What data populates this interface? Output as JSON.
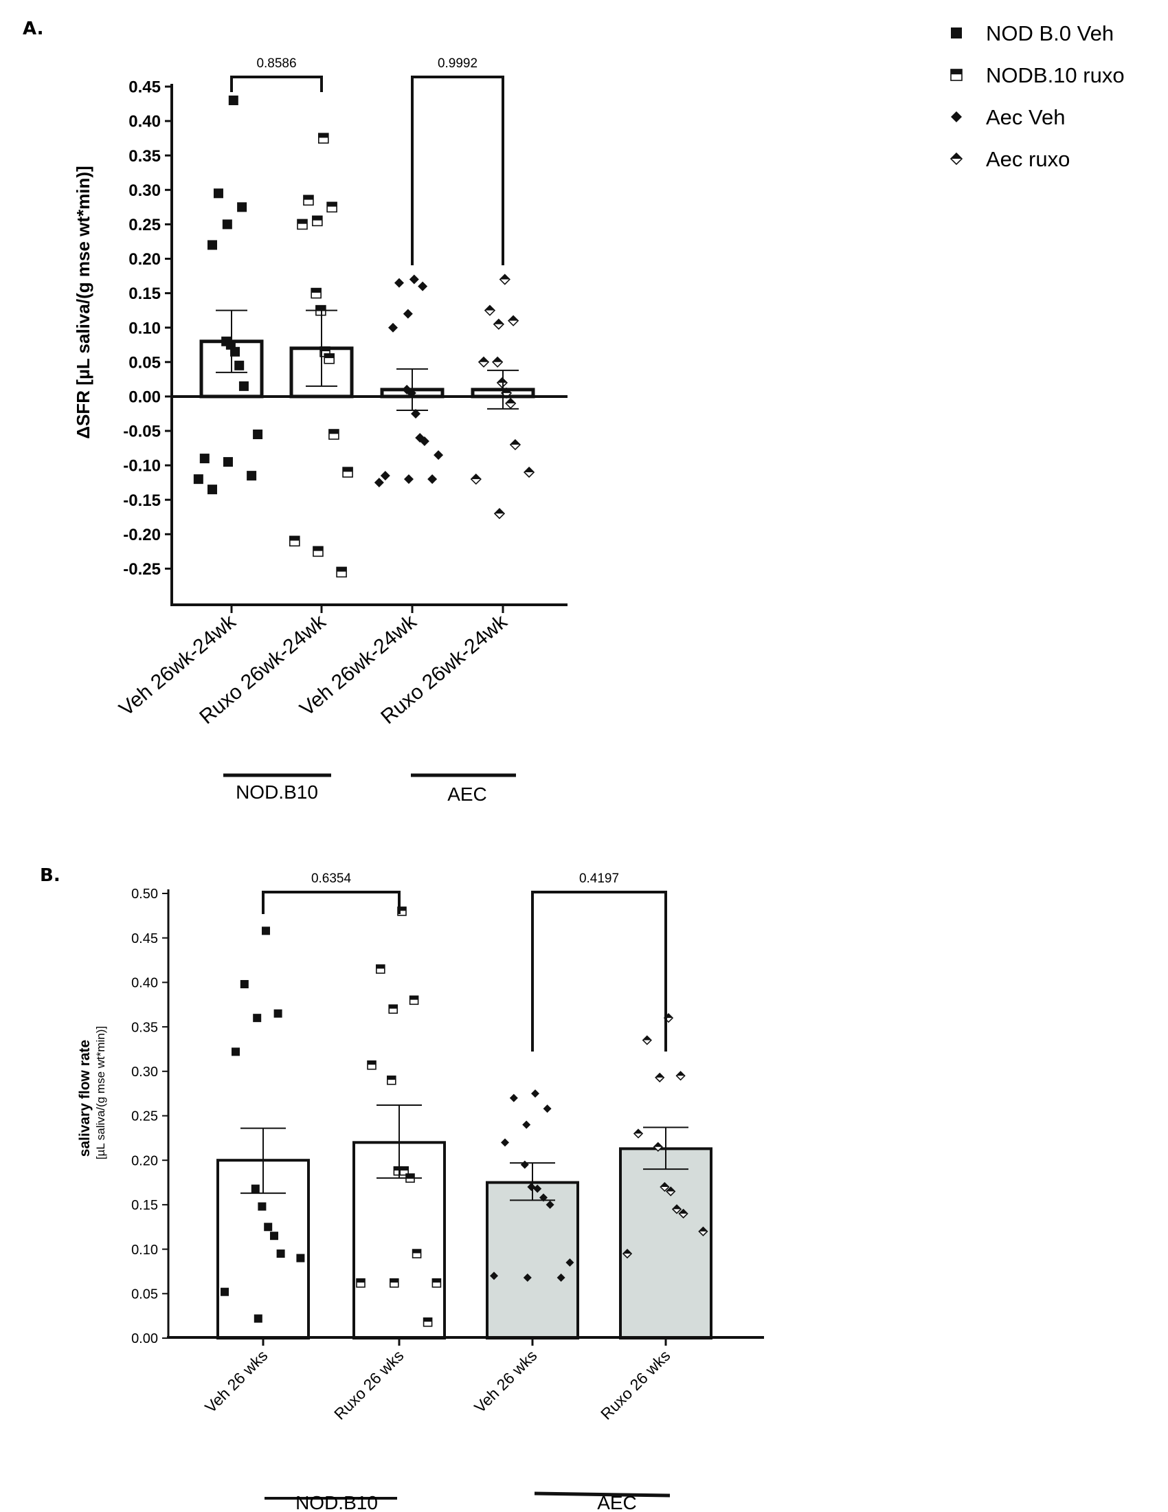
{
  "legend": {
    "items": [
      {
        "label": "NOD B.0 Veh",
        "marker": "filled-square"
      },
      {
        "label": "NODB.10 ruxo",
        "marker": "half-square"
      },
      {
        "label": "Aec Veh",
        "marker": "filled-diamond"
      },
      {
        "label": "Aec ruxo",
        "marker": "half-diamond"
      }
    ]
  },
  "chart_data": [
    {
      "panel": "A.",
      "type": "bar",
      "ylabel": "ΔSFR [µL saliva/(g mse wt*min)]",
      "ylim": [
        -0.3,
        0.45
      ],
      "yticks": [
        "0.45",
        "0.40",
        "0.35",
        "0.30",
        "0.25",
        "0.20",
        "0.15",
        "0.10",
        "0.05",
        "0.00",
        "-0.05",
        "-0.10",
        "-0.15",
        "-0.20",
        "-0.25"
      ],
      "categories": [
        "Veh 26wk-24wk",
        "Ruxo 26wk-24wk",
        "Veh 26wk-24wk",
        "Ruxo 26wk-24wk"
      ],
      "groups": [
        {
          "label": "NOD.B10",
          "categories": [
            0,
            1
          ]
        },
        {
          "label": "AEC",
          "categories": [
            2,
            3
          ]
        }
      ],
      "series": [
        {
          "marker": "filled-square",
          "fill": "#ffffff",
          "mean": 0.08,
          "sem_low": 0.035,
          "sem_high": 0.125,
          "points": [
            0.43,
            0.295,
            0.275,
            0.25,
            0.22,
            0.08,
            0.075,
            0.065,
            0.045,
            0.015,
            -0.055,
            -0.09,
            -0.095,
            -0.115,
            -0.12,
            -0.135
          ]
        },
        {
          "marker": "half-square",
          "fill": "#ffffff",
          "mean": 0.07,
          "sem_low": 0.015,
          "sem_high": 0.125,
          "points": [
            0.375,
            0.285,
            0.275,
            0.255,
            0.25,
            0.15,
            0.125,
            0.065,
            0.055,
            -0.055,
            -0.11,
            -0.21,
            -0.225,
            -0.255
          ]
        },
        {
          "marker": "filled-diamond",
          "fill": "#ffffff",
          "mean": 0.01,
          "sem_low": -0.02,
          "sem_high": 0.04,
          "points": [
            0.17,
            0.165,
            0.16,
            0.12,
            0.1,
            0.01,
            0.005,
            -0.025,
            -0.06,
            -0.065,
            -0.085,
            -0.115,
            -0.12,
            -0.12,
            -0.125
          ]
        },
        {
          "marker": "half-diamond",
          "fill": "#ffffff",
          "mean": 0.01,
          "sem_low": -0.018,
          "sem_high": 0.038,
          "points": [
            0.17,
            0.125,
            0.11,
            0.105,
            0.05,
            0.05,
            0.02,
            0.005,
            -0.01,
            -0.07,
            -0.11,
            -0.12,
            -0.17
          ]
        }
      ],
      "comparisons": [
        {
          "from": 0,
          "to": 1,
          "label": "0.8586"
        },
        {
          "from": 2,
          "to": 3,
          "label": "0.9992"
        }
      ]
    },
    {
      "panel": "B.",
      "type": "bar",
      "ylabel": "salivary flow rate",
      "ylabel_sub": "[µL saliva/(g mse wt*min)]",
      "ylim": [
        0.0,
        0.5
      ],
      "yticks": [
        "0.50",
        "0.45",
        "0.40",
        "0.35",
        "0.30",
        "0.25",
        "0.20",
        "0.15",
        "0.10",
        "0.05",
        "0.00"
      ],
      "categories": [
        "Veh 26 wks",
        "Ruxo 26 wks",
        "Veh 26 wks",
        "Ruxo  26 wks"
      ],
      "groups": [
        {
          "label": "NOD.B10",
          "categories": [
            0,
            1
          ]
        },
        {
          "label": "AEC",
          "categories": [
            2,
            3
          ]
        }
      ],
      "series": [
        {
          "marker": "filled-square",
          "fill": "#ffffff",
          "mean": 0.2,
          "sem_low": 0.163,
          "sem_high": 0.236,
          "points": [
            0.458,
            0.398,
            0.365,
            0.36,
            0.322,
            0.168,
            0.148,
            0.125,
            0.115,
            0.095,
            0.09,
            0.052,
            0.022
          ]
        },
        {
          "marker": "half-square",
          "fill": "#ffffff",
          "mean": 0.22,
          "sem_low": 0.18,
          "sem_high": 0.262,
          "points": [
            0.48,
            0.415,
            0.38,
            0.37,
            0.307,
            0.29,
            0.188,
            0.188,
            0.18,
            0.095,
            0.062,
            0.062,
            0.062,
            0.018
          ]
        },
        {
          "marker": "filled-diamond",
          "fill": "#d5dcda",
          "mean": 0.175,
          "sem_low": 0.155,
          "sem_high": 0.197,
          "points": [
            0.275,
            0.27,
            0.258,
            0.24,
            0.22,
            0.195,
            0.17,
            0.168,
            0.158,
            0.15,
            0.085,
            0.07,
            0.068,
            0.068
          ]
        },
        {
          "marker": "half-diamond",
          "fill": "#d5dcda",
          "mean": 0.213,
          "sem_low": 0.19,
          "sem_high": 0.237,
          "points": [
            0.36,
            0.335,
            0.295,
            0.293,
            0.23,
            0.215,
            0.17,
            0.165,
            0.145,
            0.14,
            0.12,
            0.095
          ]
        }
      ],
      "comparisons": [
        {
          "from": 0,
          "to": 1,
          "label": "0.6354"
        },
        {
          "from": 2,
          "to": 3,
          "label": "0.4197"
        }
      ]
    }
  ]
}
